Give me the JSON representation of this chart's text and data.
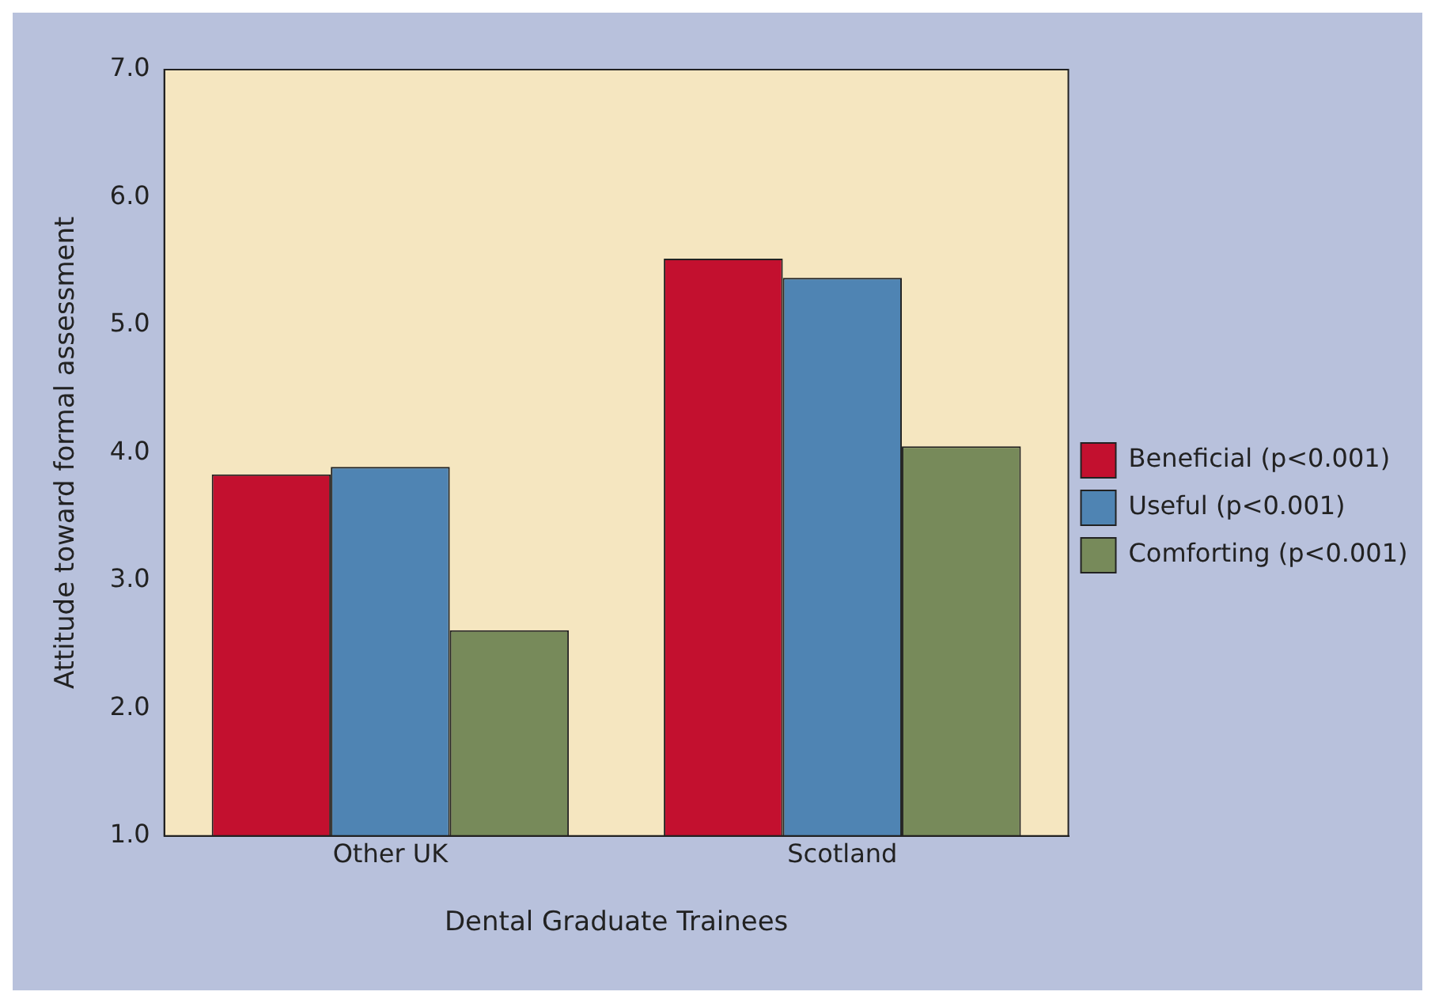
{
  "chart_data": {
    "type": "bar",
    "xlabel": "Dental Graduate Trainees",
    "ylabel": "Attitude toward formal assessment",
    "categories": [
      "Other UK",
      "Scotland"
    ],
    "series": [
      {
        "name": "Beneficial (p<0.001)",
        "color": "#c3102f",
        "values": [
          3.83,
          5.52
        ]
      },
      {
        "name": "Useful (p<0.001)",
        "color": "#4f84b3",
        "values": [
          3.89,
          5.37
        ]
      },
      {
        "name": "Comforting (p<0.001)",
        "color": "#778a5a",
        "values": [
          2.61,
          4.05
        ]
      }
    ],
    "ylim": [
      1.0,
      7.0
    ],
    "yticks": [
      {
        "value": 1,
        "label": "1.0"
      },
      {
        "value": 2,
        "label": "2.0"
      },
      {
        "value": 3,
        "label": "3.0"
      },
      {
        "value": 4,
        "label": "4.0"
      },
      {
        "value": 5,
        "label": "5.0"
      },
      {
        "value": 6,
        "label": "6.0"
      },
      {
        "value": 7,
        "label": "7.0"
      }
    ],
    "grid": false,
    "legend": "right"
  }
}
